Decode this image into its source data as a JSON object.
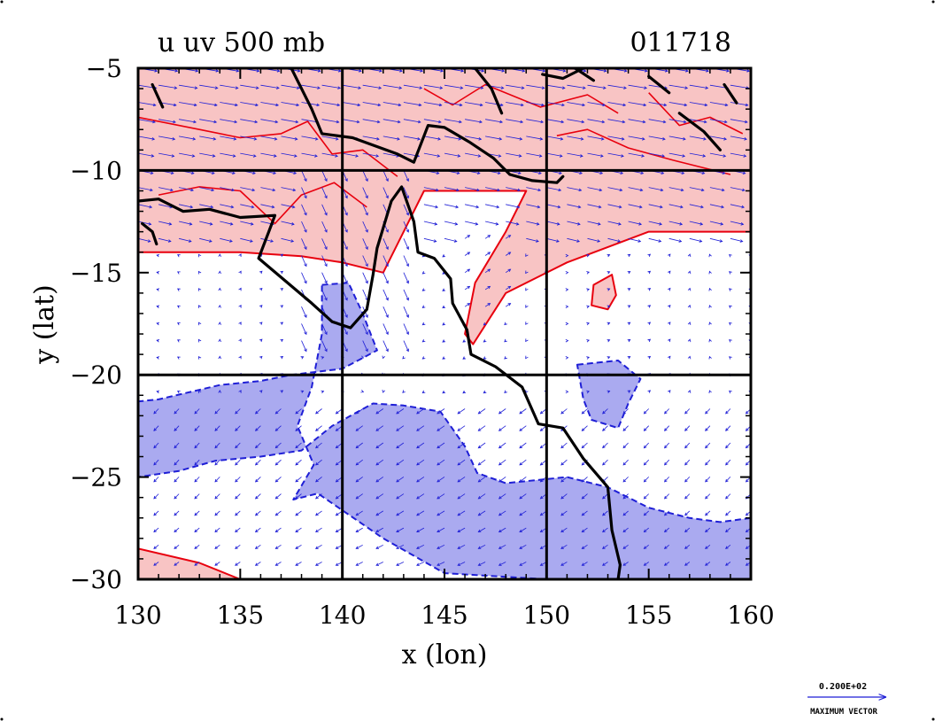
{
  "chart_data": {
    "type": "contour-vector-map",
    "title": "u uv 500 mb",
    "timestamp": "011718",
    "xlabel": "x (lon)",
    "ylabel": "y (lat)",
    "xlim": [
      130,
      160
    ],
    "ylim": [
      -30,
      -5
    ],
    "xticks": [
      130,
      135,
      140,
      145,
      150,
      155,
      160
    ],
    "yticks": [
      -5,
      -10,
      -15,
      -20,
      -25,
      -30
    ],
    "xtick_labels": [
      "130",
      "135",
      "140",
      "145",
      "150",
      "155",
      "160"
    ],
    "ytick_labels": [
      "−5",
      "−10",
      "−15",
      "−20",
      "−25",
      "−30"
    ],
    "grid_lines": {
      "lon": [
        140,
        150
      ],
      "lat": [
        -10,
        -20
      ]
    },
    "legend": {
      "value_text": "0.200E+02",
      "label": "MAXIMUM VECTOR"
    },
    "colors": {
      "positive_fill": "#f8c4c4",
      "positive_contour": "#e8000e",
      "negative_fill": "#aaaaf0",
      "negative_contour": "#1f1fd6",
      "vectors": "#1f1fd6",
      "coastline": "#000000"
    },
    "regions": [
      {
        "name": "positive",
        "polygon": [
          [
            130,
            -5
          ],
          [
            160,
            -5
          ],
          [
            160,
            -13
          ],
          [
            155,
            -13
          ],
          [
            151,
            -14.5
          ],
          [
            148,
            -16
          ],
          [
            146.4,
            -18.5
          ],
          [
            146,
            -18
          ],
          [
            146.5,
            -15.5
          ],
          [
            148,
            -13
          ],
          [
            149,
            -11
          ],
          [
            147,
            -11
          ],
          [
            144,
            -11
          ],
          [
            143,
            -13
          ],
          [
            142,
            -15
          ],
          [
            140,
            -14.5
          ],
          [
            138,
            -14.2
          ],
          [
            135,
            -14
          ],
          [
            133,
            -14
          ],
          [
            130,
            -14
          ]
        ]
      },
      {
        "name": "positive",
        "polygon": [
          [
            152.3,
            -15.6
          ],
          [
            153.2,
            -15.1
          ],
          [
            153.4,
            -16.1
          ],
          [
            153,
            -16.8
          ],
          [
            152.2,
            -16.6
          ]
        ]
      },
      {
        "name": "positive",
        "polygon": [
          [
            130,
            -28.5
          ],
          [
            133,
            -29.2
          ],
          [
            135,
            -30
          ],
          [
            130,
            -30
          ]
        ]
      },
      {
        "name": "negative",
        "polygon": [
          [
            139,
            -15.6
          ],
          [
            140.3,
            -15.5
          ],
          [
            141,
            -17
          ],
          [
            141.7,
            -18.8
          ],
          [
            140,
            -19.7
          ],
          [
            137.5,
            -20
          ],
          [
            136,
            -20.3
          ],
          [
            134,
            -20.5
          ],
          [
            131,
            -21.2
          ],
          [
            130,
            -21.3
          ],
          [
            130,
            -25
          ],
          [
            132,
            -24.7
          ],
          [
            133.8,
            -24.2
          ],
          [
            136,
            -24
          ],
          [
            138,
            -23.7
          ],
          [
            139.5,
            -22.5
          ],
          [
            140.4,
            -22
          ],
          [
            141.5,
            -21.4
          ],
          [
            143,
            -21.5
          ],
          [
            144.8,
            -21.8
          ],
          [
            146,
            -23.5
          ],
          [
            146.6,
            -24.8
          ],
          [
            148,
            -25.3
          ],
          [
            151,
            -25
          ],
          [
            153,
            -25.5
          ],
          [
            155,
            -26.5
          ],
          [
            157,
            -27
          ],
          [
            158.5,
            -27.2
          ],
          [
            160,
            -27
          ],
          [
            160,
            -30
          ],
          [
            150,
            -30
          ],
          [
            145,
            -29.7
          ],
          [
            142,
            -28
          ],
          [
            138.8,
            -25.8
          ],
          [
            137.6,
            -26.1
          ],
          [
            138.6,
            -24.4
          ],
          [
            137.8,
            -22.5
          ],
          [
            138.5,
            -20.6
          ],
          [
            139,
            -18
          ]
        ]
      },
      {
        "name": "negative",
        "polygon": [
          [
            151.5,
            -19.5
          ],
          [
            153.5,
            -19.3
          ],
          [
            154.6,
            -20.2
          ],
          [
            154,
            -21.4
          ],
          [
            153.5,
            -22.6
          ],
          [
            152.2,
            -22.2
          ],
          [
            151.8,
            -21.2
          ]
        ]
      }
    ],
    "coastlines": [
      [
        [
          130,
          -11.5
        ],
        [
          131,
          -11.4
        ],
        [
          132.2,
          -12
        ],
        [
          133.5,
          -11.9
        ],
        [
          135,
          -12.3
        ],
        [
          136.7,
          -12.2
        ],
        [
          136.4,
          -13
        ],
        [
          135.9,
          -14.3
        ],
        [
          137.2,
          -15.4
        ],
        [
          138.5,
          -16.5
        ],
        [
          139.5,
          -17.4
        ],
        [
          140.4,
          -17.7
        ],
        [
          141.2,
          -16.8
        ],
        [
          141.5,
          -15.1
        ],
        [
          141.7,
          -13.8
        ],
        [
          142.4,
          -11.5
        ],
        [
          142.9,
          -10.8
        ],
        [
          143.5,
          -12.5
        ],
        [
          143.7,
          -14
        ],
        [
          144.5,
          -14.3
        ],
        [
          145.3,
          -15.3
        ],
        [
          145.4,
          -16.5
        ],
        [
          146.1,
          -17.8
        ],
        [
          146.3,
          -19.0
        ],
        [
          147.5,
          -19.6
        ],
        [
          148.8,
          -20.6
        ],
        [
          149.6,
          -22.4
        ],
        [
          150.8,
          -22.6
        ],
        [
          151.8,
          -24.1
        ],
        [
          153.0,
          -25.5
        ],
        [
          153.2,
          -27.6
        ],
        [
          153.6,
          -29.3
        ],
        [
          153.5,
          -30
        ]
      ],
      [
        [
          137.5,
          -5
        ],
        [
          138.5,
          -7
        ],
        [
          139,
          -8.2
        ],
        [
          140.5,
          -8.4
        ],
        [
          142.7,
          -9.2
        ],
        [
          143.5,
          -9.6
        ],
        [
          144.2,
          -7.8
        ],
        [
          145,
          -7.9
        ],
        [
          146.2,
          -8.6
        ],
        [
          147.4,
          -9.4
        ],
        [
          148.2,
          -10.2
        ],
        [
          149.3,
          -10.5
        ],
        [
          150.5,
          -10.6
        ],
        [
          150.8,
          -10.3
        ]
      ],
      [
        [
          146.5,
          -5
        ],
        [
          147.3,
          -6
        ],
        [
          147.8,
          -7.2
        ]
      ],
      [
        [
          149.8,
          -5.3
        ],
        [
          150.8,
          -5.5
        ],
        [
          151.8,
          -5
        ]
      ],
      [
        [
          151.4,
          -5
        ],
        [
          152.3,
          -5.6
        ]
      ],
      [
        [
          155,
          -5.4
        ],
        [
          156,
          -6.2
        ]
      ],
      [
        [
          156.5,
          -7.2
        ],
        [
          157.7,
          -8.1
        ],
        [
          158.5,
          -9
        ]
      ],
      [
        [
          130.7,
          -5.8
        ],
        [
          131.2,
          -6.9
        ]
      ],
      [
        [
          158.7,
          -5.8
        ],
        [
          159.3,
          -6.7
        ]
      ],
      [
        [
          130.2,
          -12.6
        ],
        [
          130.7,
          -13
        ],
        [
          130.9,
          -13.6
        ]
      ]
    ]
  }
}
